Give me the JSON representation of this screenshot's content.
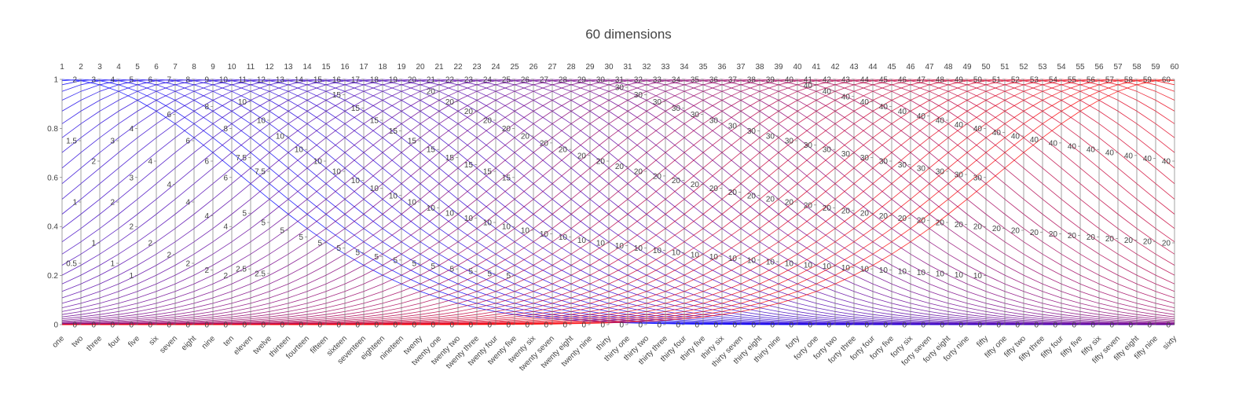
{
  "chart_data": {
    "type": "parcoords",
    "title": "60 dimensions",
    "grid": false,
    "n_dims": 60,
    "dims_top": [
      "1",
      "2",
      "3",
      "4",
      "5",
      "6",
      "7",
      "8",
      "9",
      "10",
      "11",
      "12",
      "13",
      "14",
      "15",
      "16",
      "17",
      "18",
      "19",
      "20",
      "21",
      "22",
      "23",
      "24",
      "25",
      "26",
      "27",
      "28",
      "29",
      "30",
      "31",
      "32",
      "33",
      "34",
      "35",
      "36",
      "37",
      "38",
      "39",
      "40",
      "41",
      "42",
      "43",
      "44",
      "45",
      "46",
      "47",
      "48",
      "49",
      "50",
      "51",
      "52",
      "53",
      "54",
      "55",
      "56",
      "57",
      "58",
      "59",
      "60"
    ],
    "dims_bottom": [
      "one",
      "two",
      "three",
      "four",
      "five",
      "six",
      "seven",
      "eight",
      "nine",
      "ten",
      "eleven",
      "twelve",
      "thirteen",
      "fourteen",
      "fifteen",
      "sixteen",
      "seventeen",
      "eighteen",
      "nineteen",
      "twenty",
      "twenty one",
      "twenty two",
      "twenty three",
      "twenty four",
      "twenty five",
      "twenty six",
      "twenty seven",
      "twenty eight",
      "twenty nine",
      "thirty",
      "thirty one",
      "thirty two",
      "thirty three",
      "thirty four",
      "thirty five",
      "thirty six",
      "thirty seven",
      "thirty eight",
      "thirty nine",
      "forty",
      "forty one",
      "forty two",
      "forty three",
      "forty four",
      "forty five",
      "forty six",
      "forty seven",
      "forty eight",
      "forty nine",
      "fifty",
      "fifty one",
      "fifty two",
      "fifty three",
      "fifty four",
      "fifty five",
      "fifty six",
      "fifty seven",
      "fifty eight",
      "fifty nine",
      "sixty"
    ],
    "axis_ranges": [
      [
        0,
        1
      ],
      [
        0,
        2
      ],
      [
        0,
        3
      ],
      [
        0,
        4
      ],
      [
        0,
        5
      ],
      [
        0,
        6
      ],
      [
        0,
        7
      ],
      [
        0,
        8
      ],
      [
        0,
        9
      ],
      [
        0,
        10
      ],
      [
        0,
        11
      ],
      [
        0,
        12
      ],
      [
        0,
        13
      ],
      [
        0,
        14
      ],
      [
        0,
        15
      ],
      [
        0,
        16
      ],
      [
        0,
        17
      ],
      [
        0,
        18
      ],
      [
        0,
        19
      ],
      [
        0,
        20
      ],
      [
        0,
        21
      ],
      [
        0,
        22
      ],
      [
        0,
        23
      ],
      [
        0,
        24
      ],
      [
        0,
        25
      ],
      [
        0,
        26
      ],
      [
        0,
        27
      ],
      [
        0,
        28
      ],
      [
        0,
        29
      ],
      [
        0,
        30
      ],
      [
        0,
        31
      ],
      [
        0,
        32
      ],
      [
        0,
        33
      ],
      [
        0,
        34
      ],
      [
        0,
        35
      ],
      [
        0,
        36
      ],
      [
        0,
        37
      ],
      [
        0,
        38
      ],
      [
        0,
        39
      ],
      [
        0,
        40
      ],
      [
        0,
        41
      ],
      [
        0,
        42
      ],
      [
        0,
        43
      ],
      [
        0,
        44
      ],
      [
        0,
        45
      ],
      [
        0,
        46
      ],
      [
        0,
        47
      ],
      [
        0,
        48
      ],
      [
        0,
        49
      ],
      [
        0,
        50
      ],
      [
        0,
        51
      ],
      [
        0,
        52
      ],
      [
        0,
        53
      ],
      [
        0,
        54
      ],
      [
        0,
        55
      ],
      [
        0,
        56
      ],
      [
        0,
        57
      ],
      [
        0,
        58
      ],
      [
        0,
        59
      ],
      [
        0,
        60
      ]
    ],
    "color_scale": [
      "#0000ff",
      "#ff0000"
    ],
    "series_count": 60,
    "line_profile": "each line k peaks at its own axis value k on dimension k and follows a Gaussian bump (width about 10 dimensions) over the other dimensions; line color shifts from blue to red across the 60 lines"
  }
}
